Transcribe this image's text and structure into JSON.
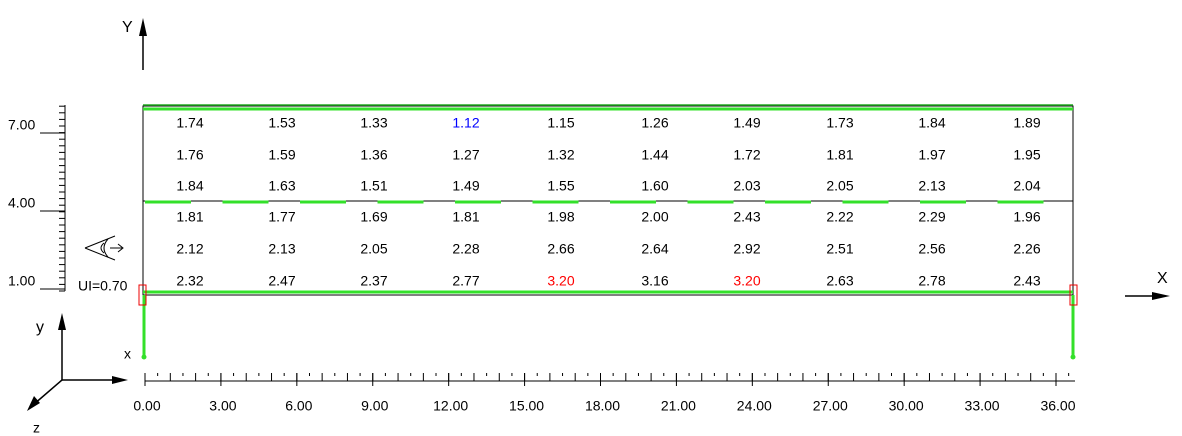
{
  "axes": {
    "global_y": "Y",
    "global_x": "X",
    "local_y": "y",
    "local_x": "x",
    "local_z": "z"
  },
  "left_ruler": {
    "labels": [
      "7.00",
      "4.00",
      "1.00"
    ]
  },
  "bottom_ruler": {
    "labels": [
      "0.00",
      "3.00",
      "6.00",
      "9.00",
      "12.00",
      "15.00",
      "18.00",
      "21.00",
      "24.00",
      "27.00",
      "30.00",
      "33.00",
      "36.00"
    ]
  },
  "ui_label": "UI=0.70",
  "table": {
    "rows": [
      [
        "1.74",
        "1.53",
        "1.33",
        "1.12",
        "1.15",
        "1.26",
        "1.49",
        "1.73",
        "1.84",
        "1.89"
      ],
      [
        "1.76",
        "1.59",
        "1.36",
        "1.27",
        "1.32",
        "1.44",
        "1.72",
        "1.81",
        "1.97",
        "1.95"
      ],
      [
        "1.84",
        "1.63",
        "1.51",
        "1.49",
        "1.55",
        "1.60",
        "2.03",
        "2.05",
        "2.13",
        "2.04"
      ],
      [
        "1.81",
        "1.77",
        "1.69",
        "1.81",
        "1.98",
        "2.00",
        "2.43",
        "2.22",
        "2.29",
        "1.96"
      ],
      [
        "2.12",
        "2.13",
        "2.05",
        "2.28",
        "2.66",
        "2.64",
        "2.92",
        "2.51",
        "2.56",
        "2.26"
      ],
      [
        "2.32",
        "2.47",
        "2.37",
        "2.77",
        "3.20",
        "3.16",
        "3.20",
        "2.63",
        "2.78",
        "2.43"
      ]
    ],
    "highlights": [
      {
        "row": 0,
        "col": 3,
        "color": "#0000ff"
      },
      {
        "row": 5,
        "col": 4,
        "color": "#ff0000"
      },
      {
        "row": 5,
        "col": 6,
        "color": "#ff0000"
      }
    ]
  }
}
